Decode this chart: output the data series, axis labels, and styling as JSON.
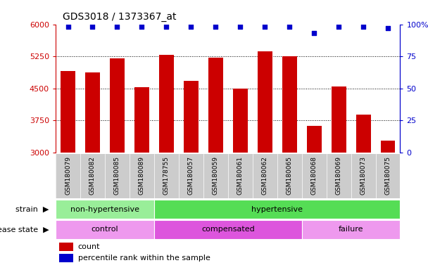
{
  "title": "GDS3018 / 1373367_at",
  "samples": [
    "GSM180079",
    "GSM180082",
    "GSM180085",
    "GSM180089",
    "GSM178755",
    "GSM180057",
    "GSM180059",
    "GSM180061",
    "GSM180062",
    "GSM180065",
    "GSM180068",
    "GSM180069",
    "GSM180073",
    "GSM180075"
  ],
  "counts": [
    4900,
    4870,
    5200,
    4530,
    5280,
    4680,
    5220,
    4490,
    5360,
    5260,
    3620,
    4550,
    3880,
    3280
  ],
  "percentile_ranks": [
    98,
    98,
    98,
    98,
    98,
    98,
    98,
    98,
    98,
    98,
    93,
    98,
    98,
    97
  ],
  "ymin": 3000,
  "ymax": 6000,
  "yticks_left": [
    3000,
    3750,
    4500,
    5250,
    6000
  ],
  "yticks_right": [
    0,
    25,
    50,
    75,
    100
  ],
  "yticks_right_labels": [
    "0",
    "25",
    "50",
    "75",
    "100%"
  ],
  "grid_lines": [
    3750,
    4500,
    5250
  ],
  "bar_color": "#cc0000",
  "dot_color": "#0000cc",
  "strain_groups": [
    {
      "label": "non-hypertensive",
      "start": 0,
      "end": 4,
      "color": "#99ee99"
    },
    {
      "label": "hypertensive",
      "start": 4,
      "end": 14,
      "color": "#55dd55"
    }
  ],
  "disease_groups": [
    {
      "label": "control",
      "start": 0,
      "end": 4,
      "color": "#ee99ee"
    },
    {
      "label": "compensated",
      "start": 4,
      "end": 10,
      "color": "#dd55dd"
    },
    {
      "label": "failure",
      "start": 10,
      "end": 14,
      "color": "#ee99ee"
    }
  ],
  "background_color": "#ffffff",
  "tick_bg_color": "#cccccc",
  "left_axis_color": "#cc0000",
  "right_axis_color": "#0000cc",
  "figsize": [
    6.08,
    3.84
  ],
  "dpi": 100
}
